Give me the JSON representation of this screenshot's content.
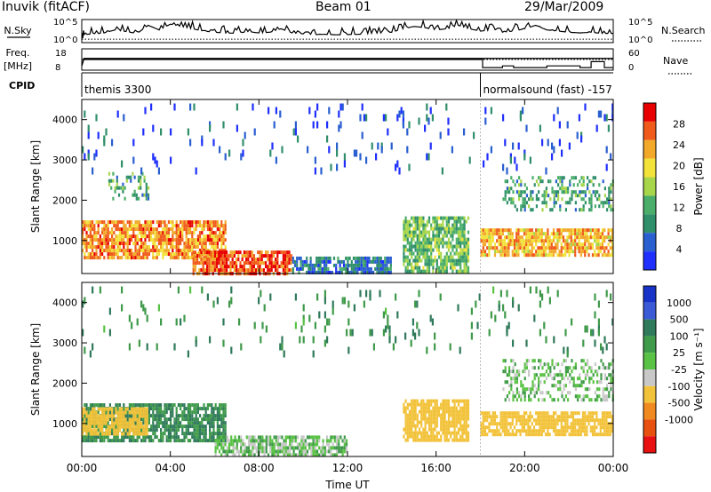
{
  "header": {
    "title": "Inuvik (fitACF)",
    "beam": "Beam 01",
    "date": "29/Mar/2009"
  },
  "colors": {
    "power_scale": [
      "#1f2fff",
      "#2a5fd0",
      "#2f8f6a",
      "#4aae6a",
      "#a8d64a",
      "#f2e23a",
      "#f2a92a",
      "#f05a1a",
      "#e80000"
    ],
    "velocity_scale": [
      "#1733c8",
      "#3a5ad6",
      "#2f7a5a",
      "#3f9a4a",
      "#59c244",
      "#c8c8c8",
      "#f2c23a",
      "#f08a20",
      "#e85010",
      "#e81010"
    ]
  },
  "chart_data": [
    {
      "type": "line",
      "panel": "N.Sky / N.Search",
      "left_label": "N.Sky",
      "right_label": "N.Search",
      "left_ticks": [
        "10^5",
        "10^0"
      ],
      "right_ticks": [
        "10^5",
        "10^0"
      ],
      "x_range": [
        "00:00",
        "24:00"
      ],
      "series": [
        {
          "name": "N.Sky",
          "x": [
            0,
            0.1,
            0.5,
            1,
            1.5,
            2,
            2.5,
            3,
            3.5,
            4,
            4.5,
            5,
            5.5,
            6,
            6.5,
            7,
            7.5,
            8,
            8.5,
            9,
            9.5,
            10,
            10.5,
            11,
            11.5,
            12,
            12.5,
            13,
            13.5,
            14,
            14.5,
            15,
            15.5,
            16,
            16.5,
            17,
            17.5,
            18,
            18.5,
            19,
            19.5,
            20,
            20.5,
            21,
            21.5,
            22,
            22.5,
            23,
            23.5,
            24
          ],
          "y": [
            0.05,
            0.35,
            0.38,
            0.42,
            0.55,
            0.48,
            0.4,
            0.75,
            0.55,
            0.8,
            0.7,
            0.6,
            0.5,
            0.45,
            0.42,
            0.4,
            0.48,
            0.42,
            0.45,
            0.6,
            0.42,
            0.38,
            0.35,
            0.36,
            0.34,
            0.35,
            0.36,
            0.4,
            0.42,
            0.45,
            0.6,
            0.7,
            0.65,
            0.55,
            0.6,
            0.75,
            0.6,
            0.5,
            0.55,
            0.45,
            0.5,
            0.6,
            0.75,
            0.55,
            0.5,
            0.45,
            0.42,
            0.45,
            0.4,
            0.4
          ]
        },
        {
          "name": "N.Search",
          "x": [
            0,
            24
          ],
          "y": [
            0.15,
            0.15
          ]
        }
      ]
    },
    {
      "type": "line",
      "panel": "Freq. / Nave",
      "left_label": "Freq.",
      "left_unit": "[MHz]",
      "right_label": "Nave",
      "left_ticks": [
        "18",
        "8"
      ],
      "right_ticks": [
        "60",
        "0"
      ],
      "x_range": [
        "00:00",
        "24:00"
      ],
      "series": [
        {
          "name": "Freq.",
          "x": [
            0,
            0.1,
            24
          ],
          "y": [
            0.2,
            0.55,
            0.55
          ]
        },
        {
          "name": "Nave",
          "x": [
            0,
            18,
            18.1,
            19,
            19.5,
            20.5,
            21,
            22.5,
            23,
            23.6,
            24
          ],
          "y": [
            0.5,
            0.5,
            0.12,
            0.2,
            0.12,
            0.12,
            0.2,
            0.12,
            0.4,
            0.12,
            0.12
          ]
        }
      ]
    },
    {
      "type": "table",
      "panel": "CPID",
      "label": "CPID",
      "segments": [
        {
          "start_hour": 0,
          "end_hour": 18,
          "text": "themis 3300"
        },
        {
          "start_hour": 18,
          "end_hour": 24,
          "text": "normalsound (fast) -157"
        }
      ]
    },
    {
      "type": "heatmap",
      "panel": "power",
      "ylabel": "Slant Range [km]",
      "xlabel": "",
      "ylim": [
        180,
        4500
      ],
      "yticks": [
        1000,
        2000,
        3000,
        4000
      ],
      "xticks": [
        "00:00",
        "04:00",
        "08:00",
        "12:00",
        "16:00",
        "20:00",
        "00:00"
      ],
      "colorbar": {
        "label": "Power [dB]",
        "ticks": [
          4,
          8,
          12,
          16,
          20,
          24,
          28
        ]
      },
      "bands": [
        {
          "x": [
            0,
            6.5
          ],
          "y": [
            600,
            1500
          ],
          "value": 24
        },
        {
          "x": [
            5.0,
            9.5
          ],
          "y": [
            200,
            750
          ],
          "value": 26
        },
        {
          "x": [
            9.5,
            14
          ],
          "y": [
            200,
            600
          ],
          "value": 8
        },
        {
          "x": [
            14.5,
            17.5
          ],
          "y": [
            200,
            1600
          ],
          "value": 14
        },
        {
          "x": [
            18,
            24
          ],
          "y": [
            600,
            1300
          ],
          "value": 22
        },
        {
          "x": [
            19,
            24
          ],
          "y": [
            1800,
            2600
          ],
          "value": 12
        },
        {
          "x": [
            1.2,
            3
          ],
          "y": [
            2000,
            2700
          ],
          "value": 12
        },
        {
          "x": [
            0,
            24
          ],
          "y": [
            2800,
            4400
          ],
          "value": 6
        }
      ]
    },
    {
      "type": "heatmap",
      "panel": "velocity",
      "ylabel": "Slant Range [km]",
      "xlabel": "Time UT",
      "ylim": [
        180,
        4500
      ],
      "yticks": [
        1000,
        2000,
        3000,
        4000
      ],
      "xticks": [
        "00:00",
        "04:00",
        "08:00",
        "12:00",
        "16:00",
        "20:00",
        "00:00"
      ],
      "colorbar": {
        "label": "Velocity [m s⁻¹]",
        "ticks": [
          1000,
          500,
          100,
          25,
          -25,
          -100,
          -500,
          -1000
        ]
      },
      "bands": [
        {
          "x": [
            0,
            6.5
          ],
          "y": [
            600,
            1500
          ],
          "value": 100
        },
        {
          "x": [
            0,
            3
          ],
          "y": [
            700,
            1400
          ],
          "value": -300
        },
        {
          "x": [
            6,
            12
          ],
          "y": [
            200,
            700
          ],
          "value": 0
        },
        {
          "x": [
            14.5,
            17.5
          ],
          "y": [
            600,
            1600
          ],
          "value": -200
        },
        {
          "x": [
            18,
            24
          ],
          "y": [
            700,
            1300
          ],
          "value": -300
        },
        {
          "x": [
            19,
            24
          ],
          "y": [
            1600,
            2600
          ],
          "value": 0
        },
        {
          "x": [
            0,
            24
          ],
          "y": [
            2800,
            4400
          ],
          "value": 80
        }
      ]
    }
  ]
}
